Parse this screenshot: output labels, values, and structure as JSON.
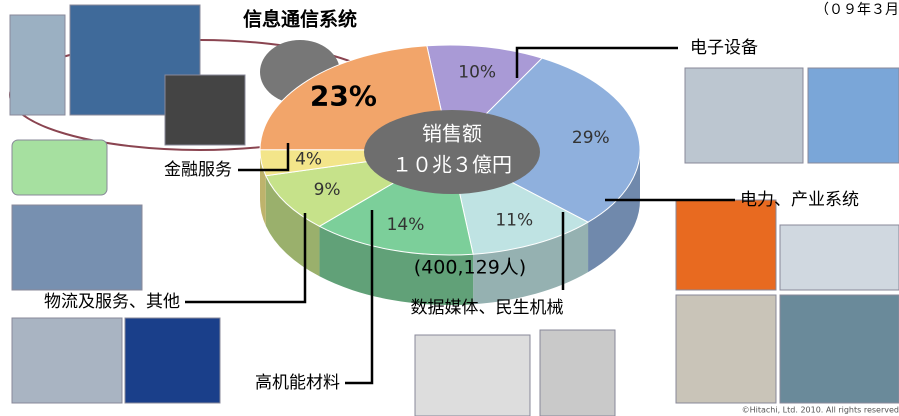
{
  "chart_data": {
    "type": "pie",
    "title": "信息通信系统",
    "date_note": "（０９年３月",
    "center_label": "销售额",
    "total": "１０兆３億円",
    "employees": "(400,129人)",
    "copyright": "©Hitachi, Ltd. 2010. All rights reserved",
    "categories": [
      "电子设备",
      "电力、产业系统",
      "数据媒体、民生机械",
      "高机能材料",
      "物流及服务、其他",
      "金融服务",
      "信息通信系统"
    ],
    "values": [
      10,
      29,
      11,
      14,
      9,
      4,
      23
    ],
    "value_labels": [
      "10%",
      "29%",
      "11%",
      "14%",
      "9%",
      "4%",
      "23%"
    ],
    "colors": [
      "#a99ad6",
      "#8fb0dd",
      "#bfe3e3",
      "#7ccf9a",
      "#c6e28a",
      "#f3e58a",
      "#f2a56a"
    ]
  }
}
